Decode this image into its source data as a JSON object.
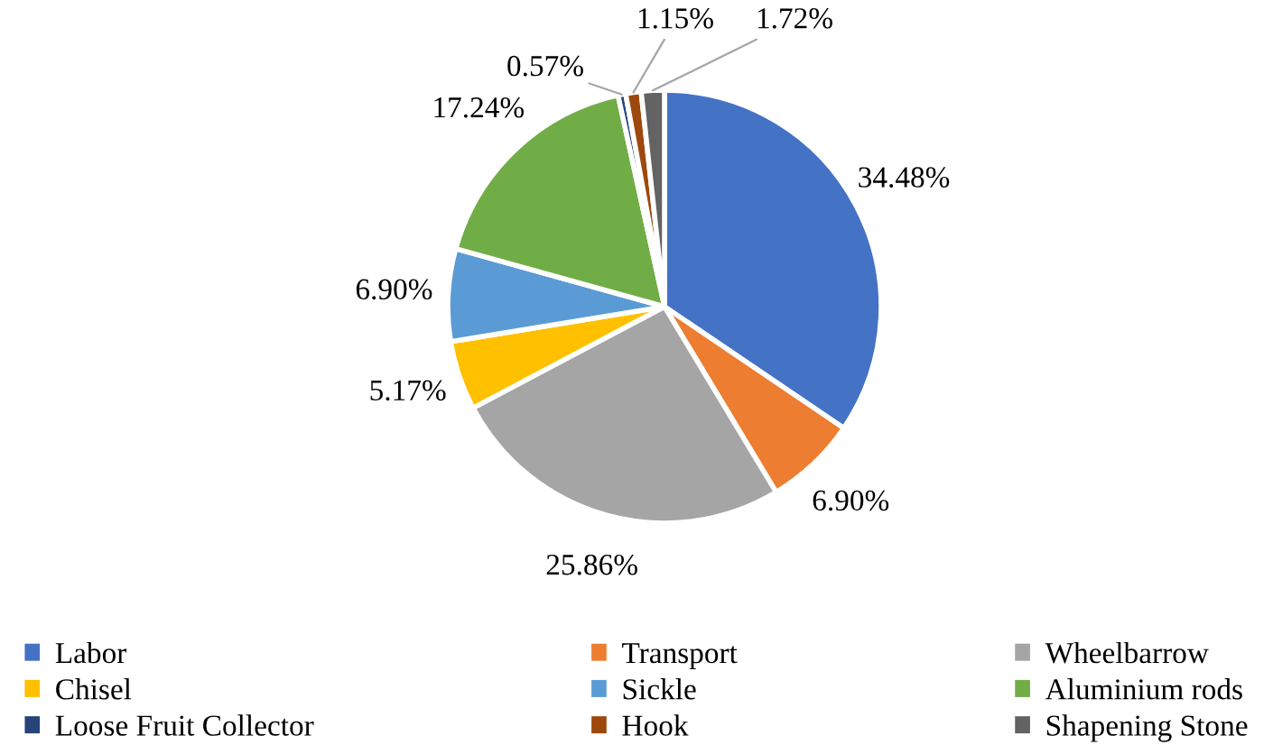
{
  "chart_data": {
    "type": "pie",
    "categories": [
      "Labor",
      "Transport",
      "Wheelbarrow",
      "Chisel",
      "Sickle",
      "Aluminium rods",
      "Loose Fruit Collector",
      "Hook",
      "Shapening Stone"
    ],
    "values": [
      34.48,
      6.9,
      25.86,
      5.17,
      6.9,
      17.24,
      0.57,
      1.15,
      1.72
    ],
    "value_labels": [
      "34.48%",
      "6.90%",
      "25.86%",
      "5.17%",
      "6.90%",
      "17.24%",
      "0.57%",
      "1.15%",
      "1.72%"
    ],
    "colors": [
      "#4472c4",
      "#ed7d31",
      "#a5a5a5",
      "#ffc000",
      "#5b9bd5",
      "#70ad47",
      "#264478",
      "#9e480e",
      "#636363"
    ],
    "legend": "bottom"
  }
}
